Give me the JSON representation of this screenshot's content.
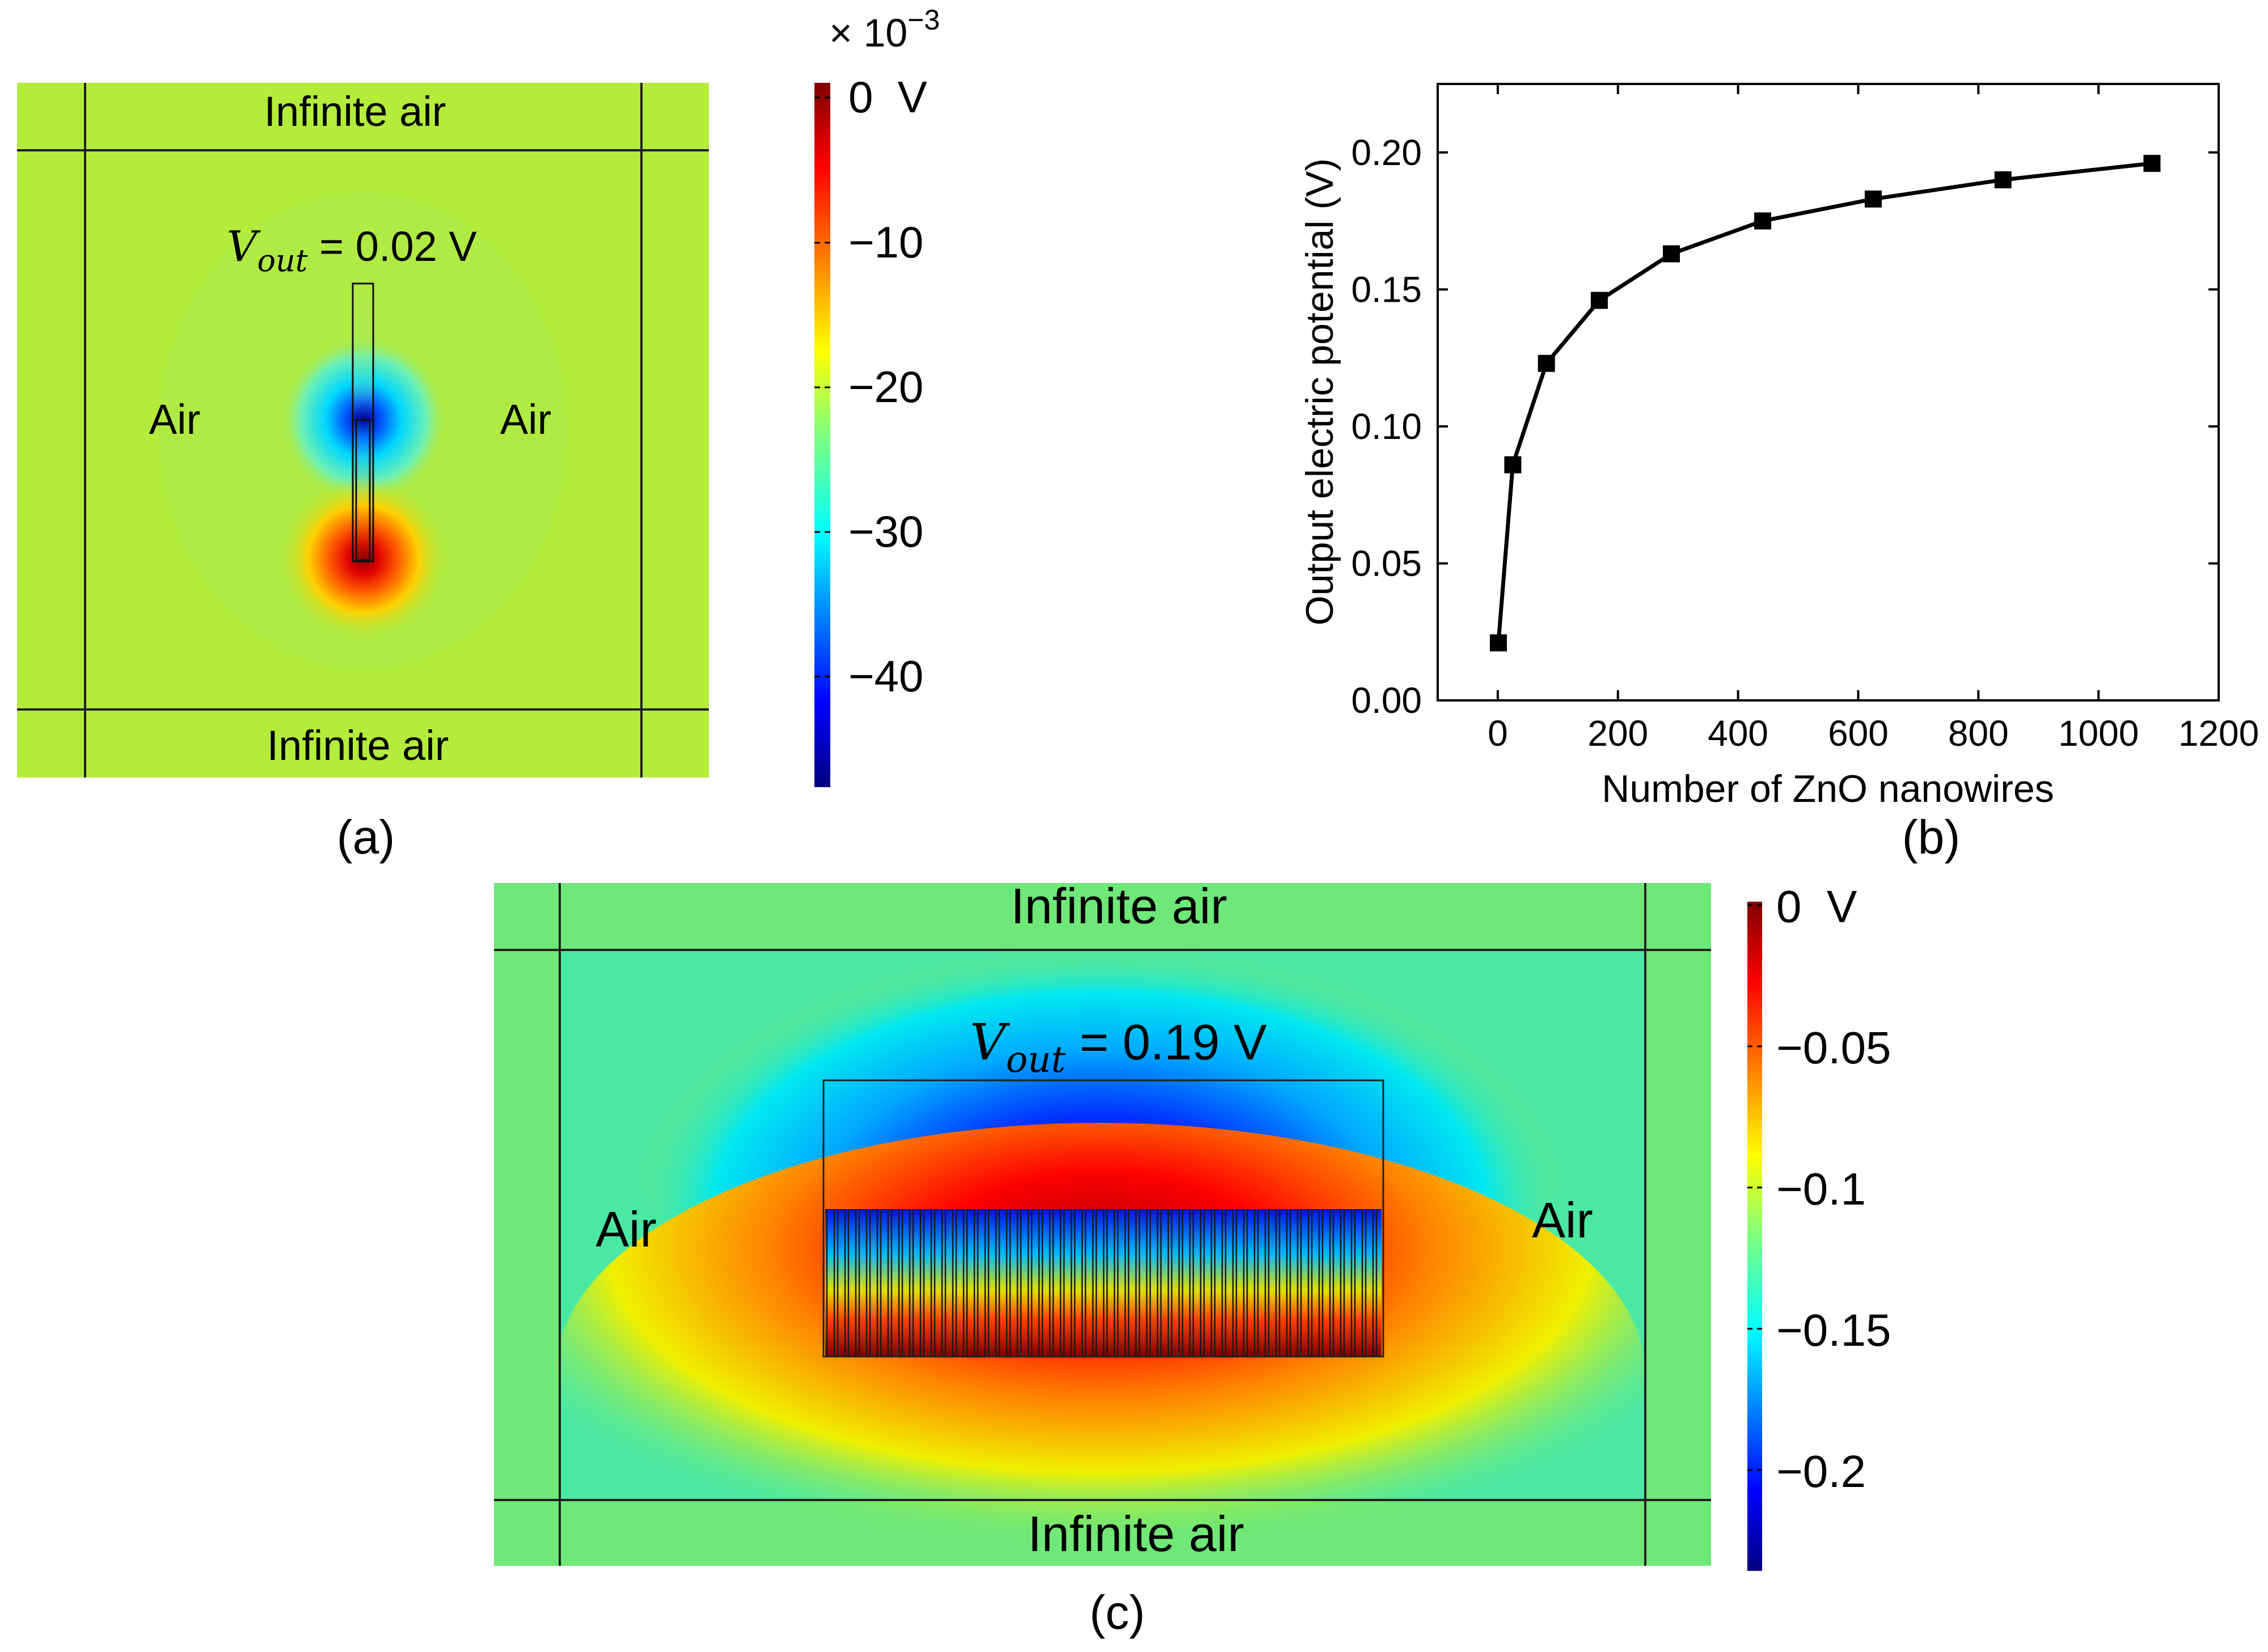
{
  "panel_a": {
    "label": "(a)",
    "top_region": "Infinite air",
    "bottom_region": "Infinite air",
    "left_region": "Air",
    "right_region": "Air",
    "vout_symbol": "V",
    "vout_subscript": "out",
    "vout_value": " = 0.02 V",
    "colorbar": {
      "multiplier": "× 10",
      "exponent": "−3",
      "ticks": [
        "0  V",
        "−10",
        "−20",
        "−30",
        "−40"
      ]
    }
  },
  "panel_c": {
    "label": "(c)",
    "top_region": "Infinite air",
    "bottom_region": "Infinite air",
    "left_region": "Air",
    "right_region": "Air",
    "vout_symbol": "V",
    "vout_subscript": "out",
    "vout_value": " = 0.19 V",
    "colorbar": {
      "ticks": [
        "0  V",
        "−0.05",
        "−0.1",
        "−0.15",
        "−0.2"
      ]
    }
  },
  "chart_data": {
    "type": "line",
    "panel_label": "(b)",
    "title": "",
    "xlabel": "Number of ZnO nanowires",
    "ylabel": "Output electric potential (V)",
    "x": [
      1,
      25,
      81,
      169,
      289,
      441,
      625,
      841,
      1089
    ],
    "y": [
      0.021,
      0.086,
      0.123,
      0.146,
      0.163,
      0.175,
      0.183,
      0.19,
      0.196
    ],
    "xlim": [
      -100,
      1200
    ],
    "ylim": [
      0,
      0.225
    ],
    "xticks": [
      0,
      200,
      400,
      600,
      800,
      1000,
      1200
    ],
    "xtick_labels": [
      "0",
      "200",
      "400",
      "600",
      "800",
      "1000",
      "1200"
    ],
    "yticks": [
      0,
      0.05,
      0.1,
      0.15,
      0.2
    ],
    "ytick_labels": [
      "0.00",
      "0.05",
      "0.10",
      "0.15",
      "0.20"
    ],
    "marker": "square",
    "color": "#000000",
    "grid": false
  },
  "colors": {
    "background_field_a": "#b4ec3c",
    "background_field_c": "#6ee878",
    "lines": "#202020"
  }
}
